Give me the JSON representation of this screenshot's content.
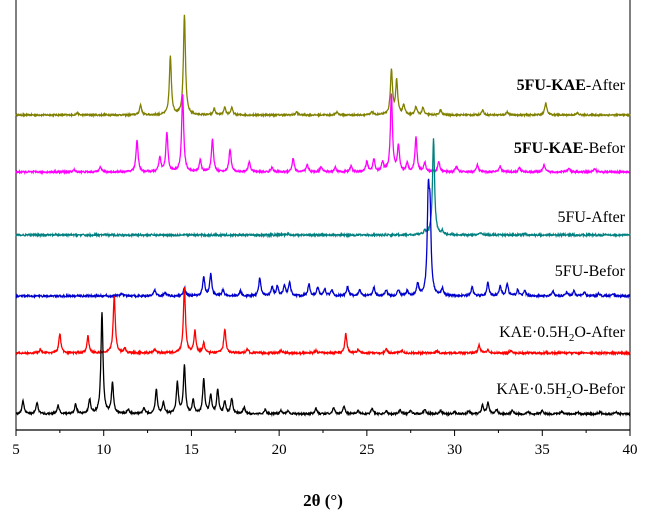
{
  "chart_data": {
    "type": "line",
    "title": "",
    "xlabel_bold": "2θ",
    "xlabel_unit": " (°)",
    "ylabel": "",
    "xlim": [
      5,
      40
    ],
    "xticks": [
      5,
      10,
      15,
      20,
      25,
      30,
      35,
      40
    ],
    "grid": false,
    "legend": "inline labels at right of each trace",
    "series": [
      {
        "label_parts": [
          {
            "text": "5FU-",
            "bold": true
          },
          {
            "text": "KAE",
            "bold": true
          },
          {
            "text": "-After",
            "bold": false
          }
        ],
        "color": "#808000",
        "peaks": [
          [
            8.5,
            2
          ],
          [
            12.1,
            10
          ],
          [
            13.8,
            58
          ],
          [
            14.6,
            100
          ],
          [
            16.3,
            6
          ],
          [
            16.9,
            7
          ],
          [
            17.3,
            7
          ],
          [
            21.0,
            3
          ],
          [
            23.3,
            3
          ],
          [
            25.3,
            3
          ],
          [
            26.4,
            44
          ],
          [
            26.7,
            34
          ],
          [
            27.1,
            10
          ],
          [
            27.8,
            8
          ],
          [
            28.2,
            7
          ],
          [
            29.2,
            5
          ],
          [
            31.6,
            5
          ],
          [
            33.0,
            3
          ],
          [
            35.2,
            12
          ],
          [
            37.0,
            2
          ]
        ]
      },
      {
        "label_parts": [
          {
            "text": "5FU-",
            "bold": true
          },
          {
            "text": "KAE",
            "bold": true
          },
          {
            "text": "-Befor",
            "bold": false
          }
        ],
        "color": "#ff00ff",
        "peaks": [
          [
            8.3,
            2
          ],
          [
            9.8,
            5
          ],
          [
            11.9,
            28
          ],
          [
            13.2,
            12
          ],
          [
            13.6,
            34
          ],
          [
            14.5,
            67
          ],
          [
            15.5,
            10
          ],
          [
            16.2,
            28
          ],
          [
            17.2,
            20
          ],
          [
            18.3,
            9
          ],
          [
            19.6,
            4
          ],
          [
            20.8,
            12
          ],
          [
            21.6,
            6
          ],
          [
            22.4,
            5
          ],
          [
            23.2,
            4
          ],
          [
            24.1,
            5
          ],
          [
            25.0,
            9
          ],
          [
            25.4,
            11
          ],
          [
            25.9,
            8
          ],
          [
            26.4,
            67
          ],
          [
            26.8,
            22
          ],
          [
            27.3,
            7
          ],
          [
            27.8,
            30
          ],
          [
            28.3,
            8
          ],
          [
            29.1,
            9
          ],
          [
            30.1,
            5
          ],
          [
            31.3,
            6
          ],
          [
            32.6,
            5
          ],
          [
            33.7,
            4
          ],
          [
            35.1,
            6
          ],
          [
            36.5,
            3
          ],
          [
            38.0,
            3
          ]
        ]
      },
      {
        "label_parts": [
          {
            "text": "5FU-After",
            "bold": false
          }
        ],
        "color": "#008080",
        "peaks": [
          [
            20.5,
            1
          ],
          [
            28.3,
            3
          ],
          [
            28.8,
            80
          ],
          [
            29.3,
            3
          ],
          [
            31.5,
            2
          ],
          [
            34.0,
            1
          ]
        ]
      },
      {
        "label_parts": [
          {
            "text": "5FU-Befor",
            "bold": false
          }
        ],
        "color": "#0000cc",
        "peaks": [
          [
            11.0,
            2
          ],
          [
            12.9,
            5
          ],
          [
            13.5,
            3
          ],
          [
            14.6,
            7
          ],
          [
            15.7,
            16
          ],
          [
            16.1,
            18
          ],
          [
            16.8,
            5
          ],
          [
            17.8,
            4
          ],
          [
            18.9,
            15
          ],
          [
            19.6,
            7
          ],
          [
            19.9,
            8
          ],
          [
            20.3,
            9
          ],
          [
            20.6,
            11
          ],
          [
            21.7,
            10
          ],
          [
            22.2,
            7
          ],
          [
            22.6,
            6
          ],
          [
            23.0,
            5
          ],
          [
            23.9,
            8
          ],
          [
            24.6,
            5
          ],
          [
            25.4,
            7
          ],
          [
            26.1,
            5
          ],
          [
            26.8,
            5
          ],
          [
            27.3,
            4
          ],
          [
            27.9,
            10
          ],
          [
            28.5,
            75
          ],
          [
            28.6,
            60
          ],
          [
            29.3,
            6
          ],
          [
            31.0,
            7
          ],
          [
            31.9,
            11
          ],
          [
            32.6,
            8
          ],
          [
            33.0,
            10
          ],
          [
            33.6,
            5
          ],
          [
            34.0,
            4
          ],
          [
            35.6,
            4
          ],
          [
            36.4,
            3
          ],
          [
            36.8,
            4
          ],
          [
            37.4,
            3
          ],
          [
            38.2,
            2
          ],
          [
            39.0,
            2
          ]
        ]
      },
      {
        "label_parts": [
          {
            "text": "KAE·0.5H",
            "bold": false
          },
          {
            "text": "2",
            "bold": false,
            "sub": true
          },
          {
            "text": "O-After",
            "bold": false
          }
        ],
        "color": "#ff0000",
        "peaks": [
          [
            6.4,
            3
          ],
          [
            7.5,
            16
          ],
          [
            9.1,
            14
          ],
          [
            10.6,
            48
          ],
          [
            11.2,
            4
          ],
          [
            12.9,
            3
          ],
          [
            14.6,
            55
          ],
          [
            15.2,
            18
          ],
          [
            15.7,
            8
          ],
          [
            16.9,
            20
          ],
          [
            18.2,
            3
          ],
          [
            20.1,
            2
          ],
          [
            22.1,
            2
          ],
          [
            23.8,
            16
          ],
          [
            24.5,
            3
          ],
          [
            26.1,
            3
          ],
          [
            27.0,
            2
          ],
          [
            29.0,
            2
          ],
          [
            31.4,
            7
          ],
          [
            31.9,
            3
          ],
          [
            33.2,
            2
          ]
        ]
      },
      {
        "label_parts": [
          {
            "text": "KAE·0.5H",
            "bold": false
          },
          {
            "text": "2",
            "bold": false,
            "sub": true
          },
          {
            "text": "O-Befor",
            "bold": false
          }
        ],
        "color": "#000000",
        "peaks": [
          [
            5.4,
            12
          ],
          [
            6.2,
            10
          ],
          [
            7.4,
            8
          ],
          [
            8.4,
            9
          ],
          [
            9.2,
            13
          ],
          [
            9.9,
            92
          ],
          [
            10.5,
            28
          ],
          [
            11.4,
            4
          ],
          [
            12.3,
            5
          ],
          [
            13.0,
            22
          ],
          [
            13.4,
            10
          ],
          [
            14.2,
            28
          ],
          [
            14.6,
            43
          ],
          [
            15.1,
            12
          ],
          [
            15.7,
            31
          ],
          [
            16.1,
            16
          ],
          [
            16.5,
            22
          ],
          [
            16.9,
            11
          ],
          [
            17.3,
            14
          ],
          [
            18.0,
            6
          ],
          [
            19.2,
            4
          ],
          [
            20.1,
            3
          ],
          [
            20.5,
            3
          ],
          [
            22.1,
            5
          ],
          [
            23.1,
            6
          ],
          [
            23.7,
            7
          ],
          [
            24.5,
            3
          ],
          [
            25.3,
            5
          ],
          [
            26.1,
            3
          ],
          [
            26.9,
            4
          ],
          [
            27.5,
            3
          ],
          [
            28.3,
            4
          ],
          [
            29.2,
            3
          ],
          [
            30.0,
            2
          ],
          [
            30.8,
            3
          ],
          [
            31.6,
            8
          ],
          [
            31.9,
            10
          ],
          [
            32.4,
            4
          ],
          [
            33.3,
            3
          ],
          [
            34.2,
            2
          ],
          [
            35.0,
            3
          ],
          [
            36.1,
            2
          ],
          [
            37.0,
            2
          ],
          [
            38.3,
            2
          ],
          [
            39.2,
            2
          ]
        ]
      }
    ]
  }
}
